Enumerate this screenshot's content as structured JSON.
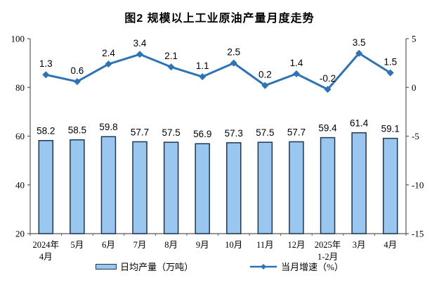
{
  "chart_data": {
    "type": "bar",
    "title": "图2 规模以上工业原油产量月度走势",
    "categories": [
      "2024年\n4月",
      "5月",
      "6月",
      "7月",
      "8月",
      "9月",
      "10月",
      "11月",
      "12月",
      "2025年\n1-2月",
      "3月",
      "4月"
    ],
    "series": [
      {
        "name": "日均产量（万吨）",
        "type": "bar",
        "axis": "left",
        "values": [
          58.2,
          58.5,
          59.8,
          57.7,
          57.5,
          56.9,
          57.3,
          57.5,
          57.7,
          59.4,
          61.4,
          59.1
        ]
      },
      {
        "name": "当月增速（%）",
        "type": "line",
        "axis": "right",
        "values": [
          1.3,
          0.6,
          2.4,
          3.4,
          2.1,
          1.1,
          2.5,
          0.2,
          1.4,
          -0.2,
          3.5,
          1.5
        ]
      }
    ],
    "left_axis": {
      "min": 20,
      "max": 100,
      "ticks": [
        20,
        40,
        60,
        80,
        100
      ]
    },
    "right_axis": {
      "min": -15,
      "max": 5,
      "ticks": [
        -15,
        -10,
        -5,
        0,
        5
      ]
    },
    "legend_position": "bottom",
    "grid": false,
    "colors": {
      "bar_fill": "#99C7F0",
      "bar_border": "#1F3550",
      "line": "#2E74B5",
      "axis": "#595959",
      "text": "#000000",
      "background": "#FFFFFF"
    }
  }
}
